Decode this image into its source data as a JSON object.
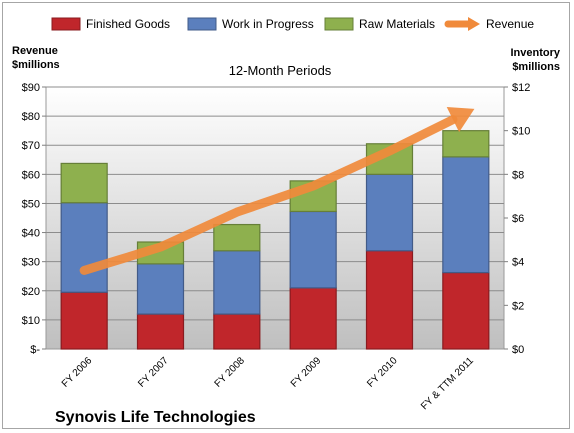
{
  "chart_data": {
    "type": "bar",
    "stacked": true,
    "title": "12-Month Periods",
    "company": "Synovis Life Technologies",
    "left_axis_label": [
      "Revenue",
      "$millions"
    ],
    "right_axis_label": [
      "Inventory",
      "$millions"
    ],
    "categories": [
      "FY 2006",
      "FY 2007",
      "FY 2008",
      "FY 2009",
      "FY 2010",
      "FY & TTM 2011"
    ],
    "left_axis": {
      "ylim": [
        0,
        90
      ],
      "ticks": [
        0,
        10,
        20,
        30,
        40,
        50,
        60,
        70,
        80,
        90
      ],
      "tick_labels": [
        "$-",
        "$10",
        "$20",
        "$30",
        "$40",
        "$50",
        "$60",
        "$70",
        "$80",
        "$90"
      ]
    },
    "right_axis": {
      "ylim": [
        0,
        12
      ],
      "ticks": [
        0,
        2,
        4,
        6,
        8,
        10,
        12
      ],
      "tick_labels": [
        "$0",
        "$2",
        "$4",
        "$6",
        "$8",
        "$10",
        "$12"
      ]
    },
    "series": [
      {
        "name": "Finished Goods",
        "axis": "right",
        "color": "#c0262b",
        "values": [
          2.6,
          1.6,
          1.6,
          2.8,
          4.5,
          3.5
        ]
      },
      {
        "name": "Work in Progress",
        "axis": "right",
        "color": "#5b7fbd",
        "values": [
          4.1,
          2.3,
          2.9,
          3.5,
          3.5,
          5.3
        ]
      },
      {
        "name": "Raw Materials",
        "axis": "right",
        "color": "#8eb04e",
        "values": [
          1.8,
          1.0,
          1.2,
          1.4,
          1.4,
          1.2
        ]
      },
      {
        "name": "Revenue",
        "axis": "left",
        "type": "line",
        "color": "#f08a3b",
        "values": [
          27,
          35,
          47,
          56,
          68,
          81
        ]
      }
    ],
    "grid": true,
    "legend": "top"
  }
}
